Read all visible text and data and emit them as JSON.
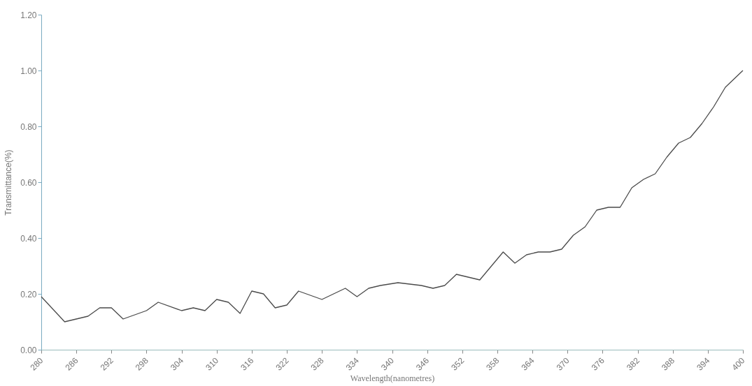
{
  "chart_data": {
    "type": "line",
    "xlabel": "Wavelength(nanometres)",
    "ylabel": "Transmittance(%)",
    "x": [
      280,
      284,
      288,
      290,
      292,
      294,
      298,
      300,
      304,
      306,
      308,
      310,
      312,
      314,
      316,
      318,
      320,
      322,
      324,
      328,
      330,
      332,
      334,
      336,
      338,
      341,
      345,
      347,
      349,
      351,
      355,
      357,
      359,
      361,
      363,
      365,
      367,
      369,
      371,
      373,
      375,
      377,
      379,
      381,
      383,
      385,
      387,
      389,
      391,
      393,
      395,
      397,
      398,
      400
    ],
    "series": [
      {
        "color": "#4a4a4a",
        "values": [
          0.19,
          0.1,
          0.12,
          0.15,
          0.15,
          0.11,
          0.14,
          0.17,
          0.14,
          0.15,
          0.14,
          0.18,
          0.17,
          0.13,
          0.21,
          0.2,
          0.15,
          0.16,
          0.21,
          0.18,
          0.2,
          0.22,
          0.19,
          0.22,
          0.23,
          0.24,
          0.23,
          0.22,
          0.23,
          0.27,
          0.25,
          0.3,
          0.35,
          0.31,
          0.34,
          0.35,
          0.35,
          0.36,
          0.41,
          0.44,
          0.5,
          0.51,
          0.51,
          0.58,
          0.61,
          0.63,
          0.69,
          0.74,
          0.76,
          0.81,
          0.87,
          0.94,
          0.96,
          1.0
        ]
      }
    ],
    "xlim": [
      280,
      400
    ],
    "xticks": [
      280,
      286,
      292,
      298,
      304,
      310,
      316,
      322,
      328,
      334,
      340,
      346,
      352,
      358,
      364,
      370,
      376,
      382,
      388,
      394,
      400
    ],
    "ylim": [
      0,
      1.2
    ],
    "yticks": [
      {
        "value": 0,
        "label": "0.00"
      },
      {
        "value": 0.2,
        "label": "0.20"
      },
      {
        "value": 0.4,
        "label": "0.40"
      },
      {
        "value": 0.6,
        "label": "0.60"
      },
      {
        "value": 0.8,
        "label": "0.80"
      },
      {
        "value": 1.0,
        "label": "1.00"
      },
      {
        "value": 1.2,
        "label": "1.20"
      }
    ],
    "grid": false,
    "marker": "none",
    "line_style": "solid"
  }
}
